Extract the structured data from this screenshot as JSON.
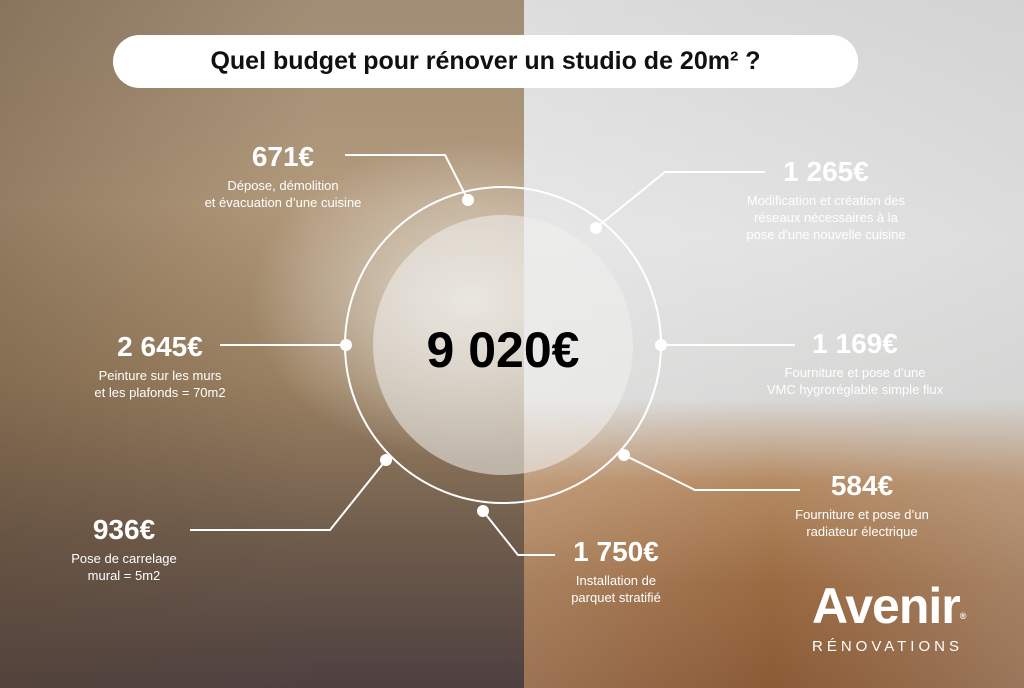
{
  "title": "Quel budget pour rénover un studio de 20m² ?",
  "total": "9 020€",
  "items": [
    {
      "amount": "671€",
      "lines": [
        "Dépose, démolition",
        "et évacuation d’une cuisine"
      ]
    },
    {
      "amount": "1 265€",
      "lines": [
        "Modification et création des",
        "réseaux nécessaires à la",
        "pose d'une nouvelle cuisine"
      ]
    },
    {
      "amount": "2 645€",
      "lines": [
        "Peinture sur les murs",
        "et les plafonds = 70m2"
      ]
    },
    {
      "amount": "1 169€",
      "lines": [
        "Fourniture et pose d’une",
        "VMC hygroréglable simple flux"
      ]
    },
    {
      "amount": "584€",
      "lines": [
        "Fourniture et pose d’un",
        "radiateur électrique"
      ]
    },
    {
      "amount": "1 750€",
      "lines": [
        "Installation de",
        "parquet stratifié"
      ]
    },
    {
      "amount": "936€",
      "lines": [
        "Pose de carrelage",
        "mural = 5m2"
      ]
    }
  ],
  "logo": {
    "brand": "Avenir",
    "registered": "®",
    "subtitle": "RÉNOVATIONS"
  },
  "colors": {
    "text_light": "#ffffff",
    "title_bg": "#ffffff",
    "title_text": "#111111",
    "total_text": "#000000"
  }
}
